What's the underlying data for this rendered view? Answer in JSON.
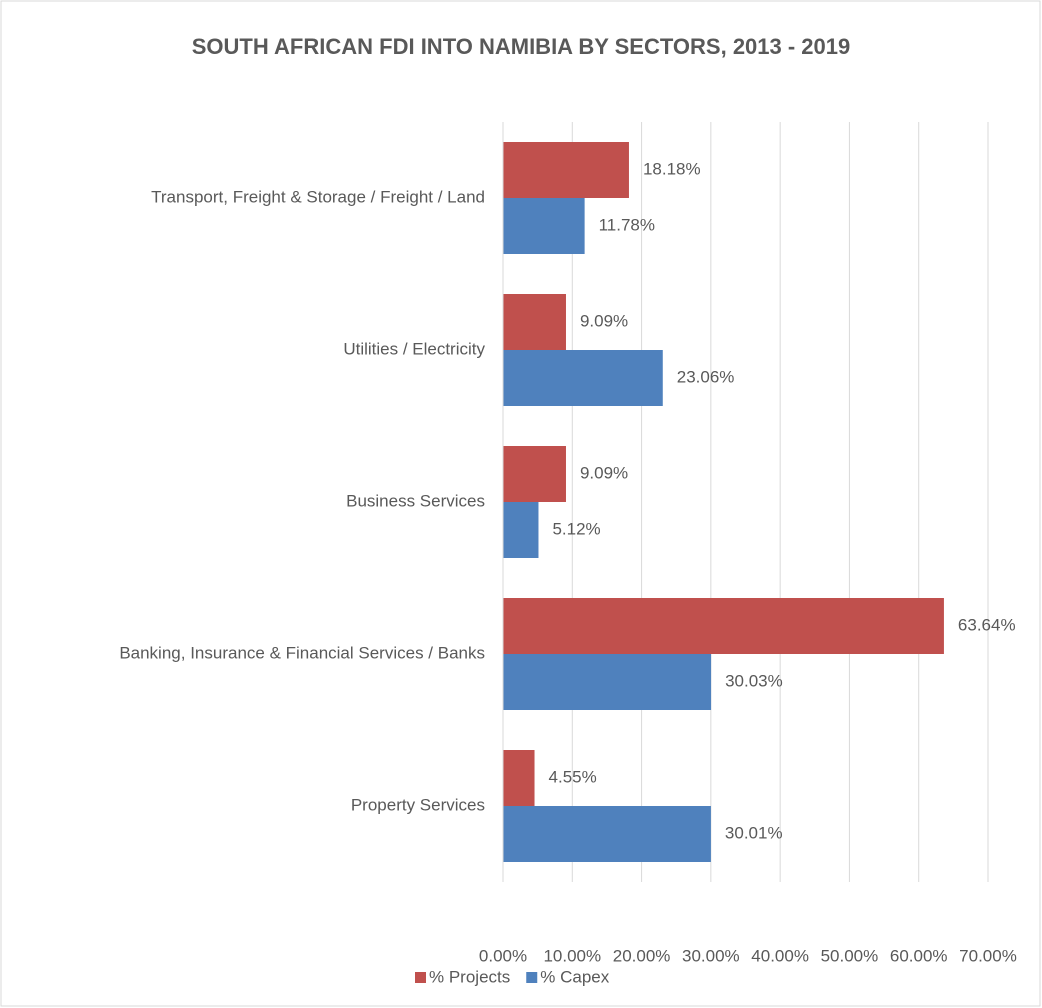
{
  "chart_data": {
    "type": "hbar",
    "title": "SOUTH AFRICAN FDI INTO NAMIBIA BY SECTORS, 2013 - 2019",
    "categories": [
      "Transport, Freight & Storage / Freight / Land",
      "Utilities / Electricity",
      "Business Services",
      "Banking, Insurance & Financial Services / Banks",
      "Property Services"
    ],
    "series": [
      {
        "name": "% Projects",
        "color": "#c0504d",
        "values": [
          18.18,
          9.09,
          9.09,
          63.64,
          4.55
        ],
        "value_labels": [
          "18.18%",
          "9.09%",
          "9.09%",
          "63.64%",
          "4.55%"
        ]
      },
      {
        "name": "% Capex",
        "color": "#4f81bd",
        "values": [
          11.78,
          23.06,
          5.12,
          30.03,
          30.01
        ],
        "value_labels": [
          "11.78%",
          "23.06%",
          "5.12%",
          "30.03%",
          "30.01%"
        ]
      }
    ],
    "xlim": [
      0,
      70
    ],
    "xticks": [
      {
        "value": 0,
        "label": "0.00%"
      },
      {
        "value": 10,
        "label": "10.00%"
      },
      {
        "value": 20,
        "label": "20.00%"
      },
      {
        "value": 30,
        "label": "30.00%"
      },
      {
        "value": 40,
        "label": "40.00%"
      },
      {
        "value": 50,
        "label": "50.00%"
      },
      {
        "value": 60,
        "label": "60.00%"
      },
      {
        "value": 70,
        "label": "70.00%"
      }
    ],
    "grid": true,
    "legend": "bottom"
  }
}
